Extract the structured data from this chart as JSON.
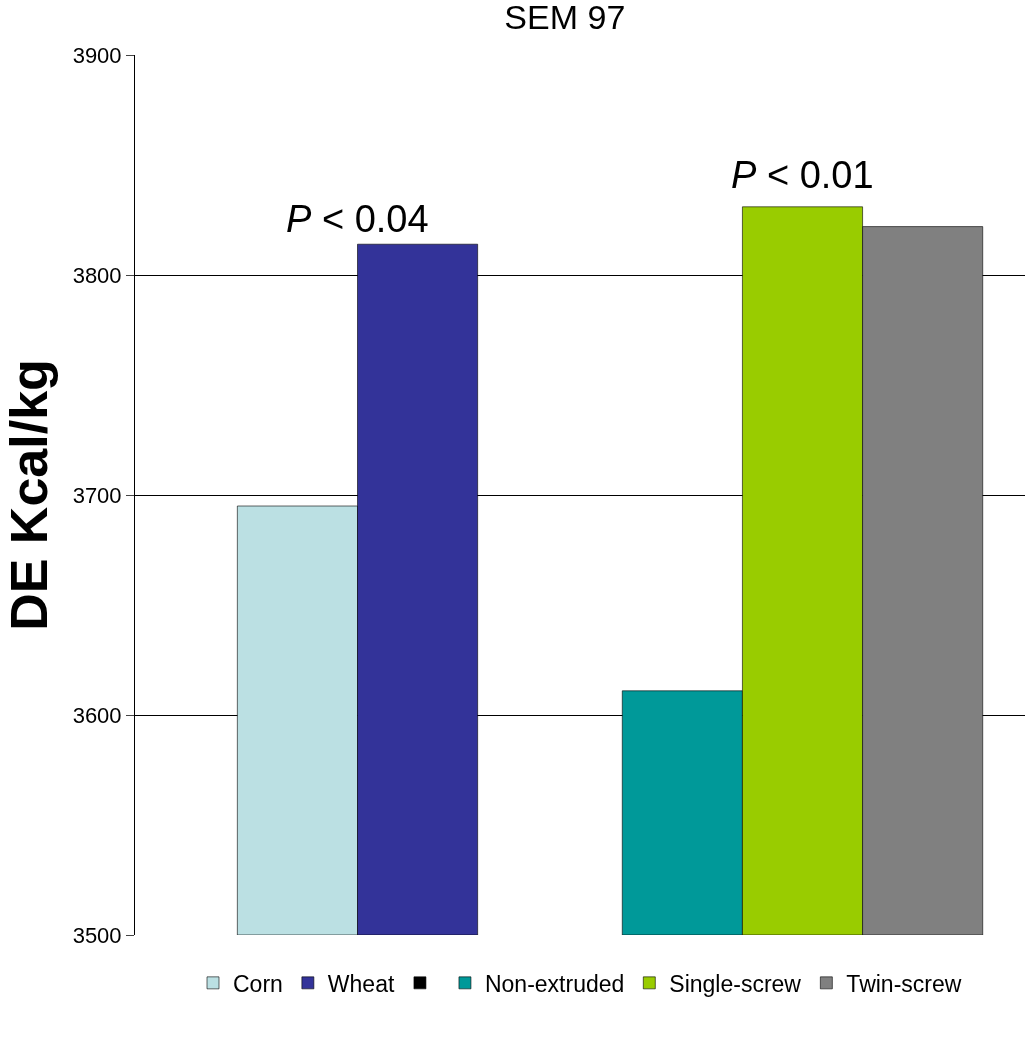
{
  "chart_data": {
    "type": "bar",
    "title": "SEM 97",
    "ylabel": "DE Kcal/kg",
    "categories": [
      null,
      null
    ],
    "series": [
      {
        "name": "Corn",
        "color": "#bbe0e3",
        "values": [
          3695,
          null
        ]
      },
      {
        "name": "Wheat",
        "color": "#333399",
        "values": [
          3814,
          null
        ]
      },
      {
        "color": "#000000",
        "values": [
          null,
          null
        ]
      },
      {
        "name": "Non-extruded",
        "color": "#009999",
        "values": [
          null,
          3611
        ]
      },
      {
        "name": "Single-screw",
        "color": "#99cc00",
        "values": [
          null,
          3831
        ]
      },
      {
        "name": "Twin-screw",
        "color": "#808080",
        "values": [
          null,
          3822
        ]
      }
    ],
    "ylim": [
      3500,
      3900
    ],
    "yticks": [
      3500,
      3600,
      3700,
      3800,
      3900
    ],
    "grid": "y",
    "legend": "bottom",
    "annotations": [
      "P < 0.04",
      "P < 0.01"
    ]
  }
}
